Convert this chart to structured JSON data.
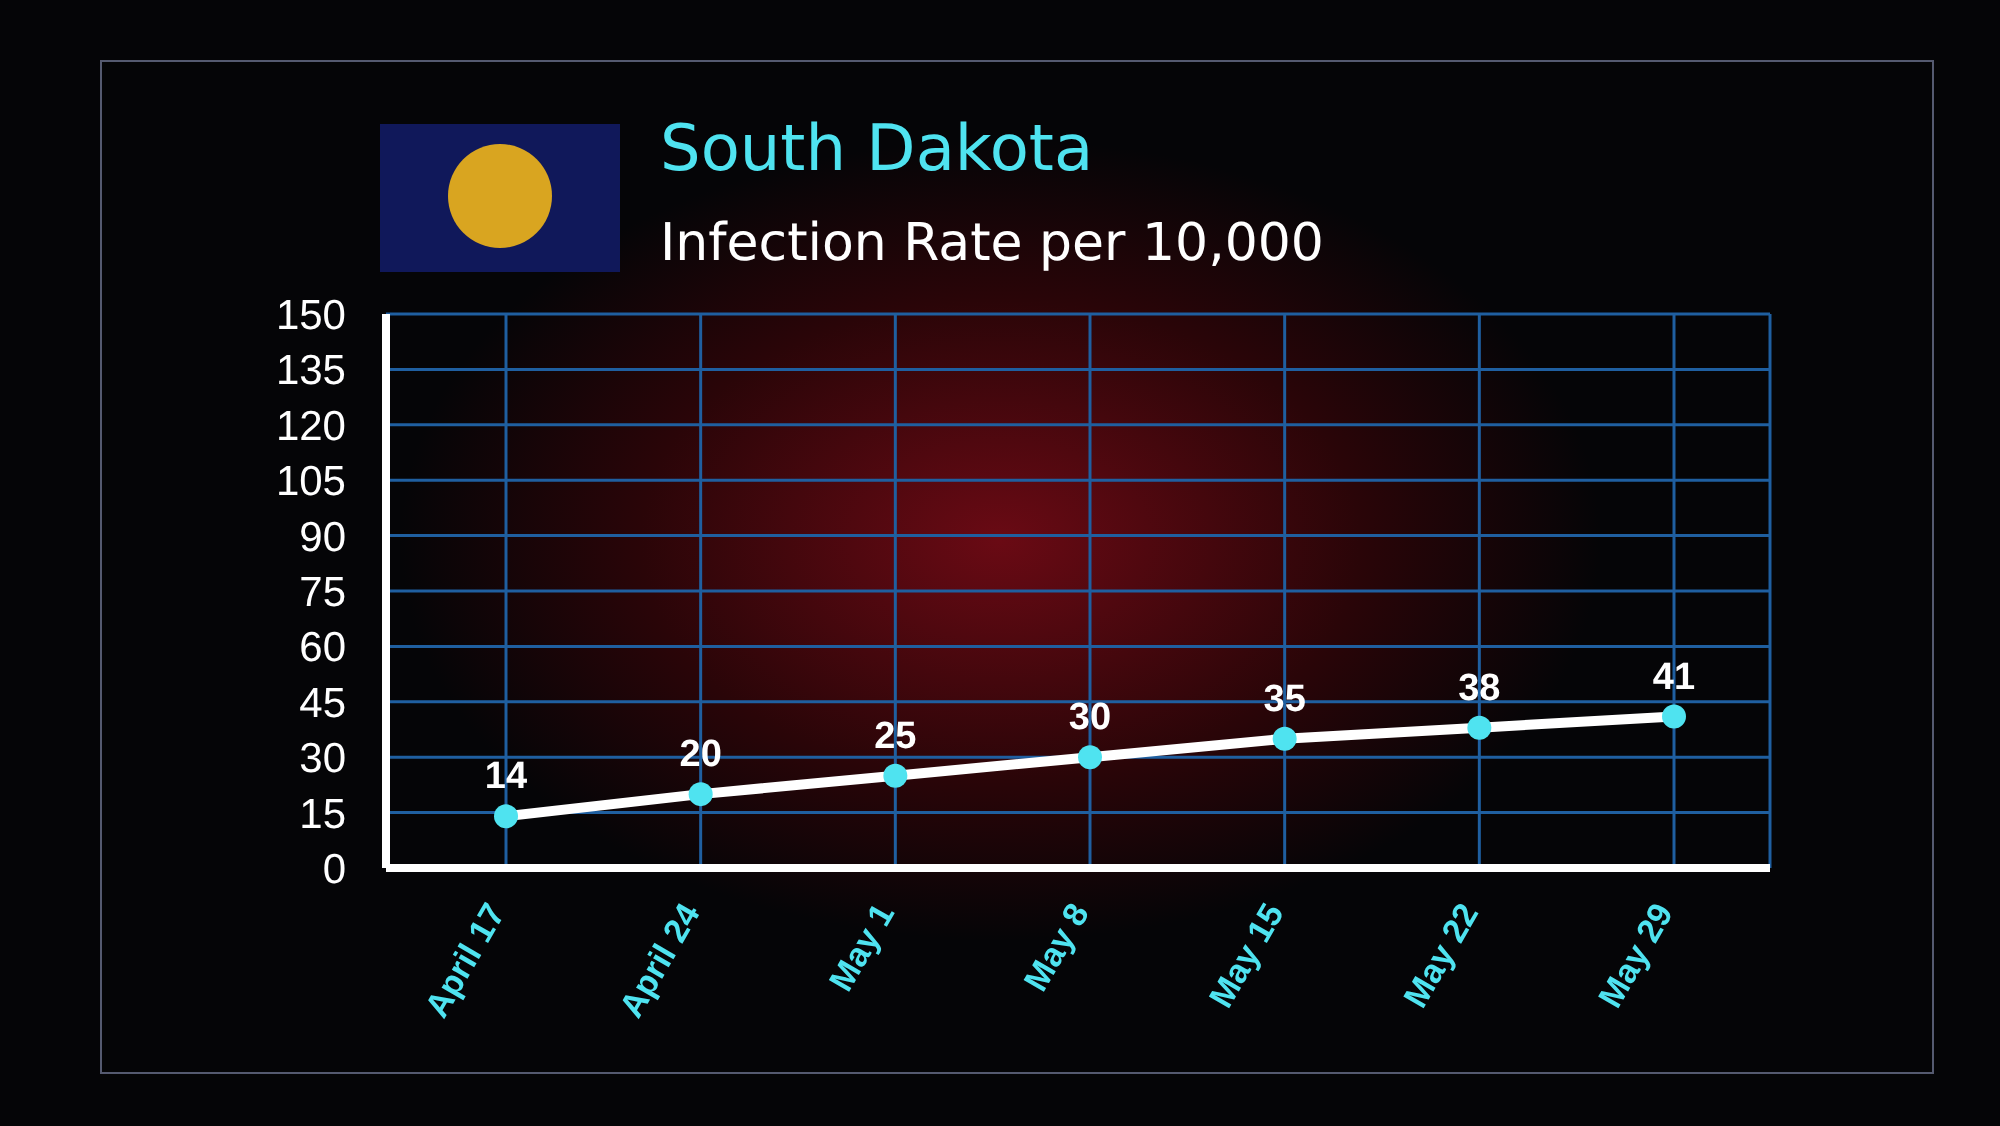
{
  "chart_data": {
    "type": "line",
    "title": "South Dakota",
    "subtitle": "Infection Rate per 10,000",
    "categories": [
      "April 17",
      "April 24",
      "May 1",
      "May 8",
      "May 15",
      "May 22",
      "May 29"
    ],
    "series": [
      {
        "color": "#ffffff",
        "values": [
          14,
          20,
          25,
          30,
          35,
          38,
          41
        ]
      }
    ],
    "ylim": [
      0,
      150
    ],
    "yticks": [
      0,
      15,
      30,
      45,
      60,
      75,
      90,
      105,
      120,
      135,
      150
    ],
    "grid": true,
    "marker": "circle",
    "data_labels": true
  }
}
